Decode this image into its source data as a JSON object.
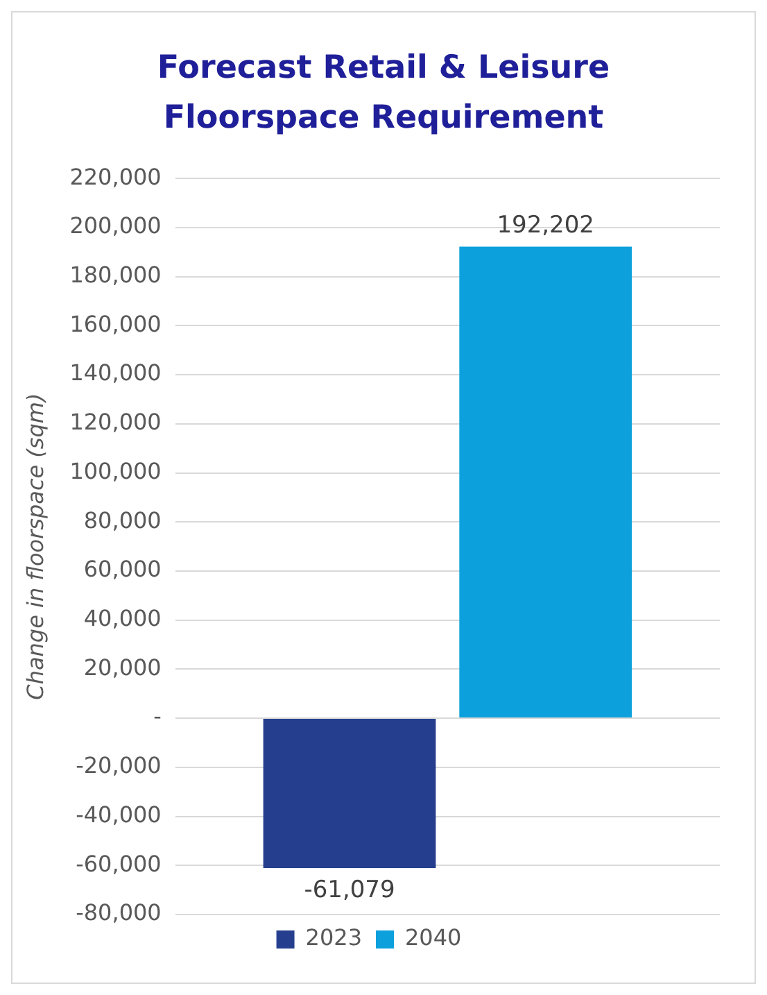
{
  "chart_data": {
    "type": "bar",
    "title": "Forecast Retail & Leisure Floorspace Requirement",
    "ylabel": "Change in floorspace (sqm)",
    "categories": [
      null
    ],
    "series": [
      {
        "name": "2023",
        "color": "#253f8e",
        "values": [
          -61079
        ],
        "value_labels": [
          "-61,079"
        ]
      },
      {
        "name": "2040",
        "color": "#0ca0dc",
        "values": [
          192202
        ],
        "value_labels": [
          "192,202"
        ]
      }
    ],
    "ylim": [
      -80000,
      220000
    ],
    "yticks": [
      {
        "value": -80000,
        "label": "-80,000"
      },
      {
        "value": -60000,
        "label": "-60,000"
      },
      {
        "value": -40000,
        "label": "-40,000"
      },
      {
        "value": -20000,
        "label": "-20,000"
      },
      {
        "value": 0,
        "label": "-"
      },
      {
        "value": 20000,
        "label": "20,000"
      },
      {
        "value": 40000,
        "label": "40,000"
      },
      {
        "value": 60000,
        "label": "60,000"
      },
      {
        "value": 80000,
        "label": "80,000"
      },
      {
        "value": 100000,
        "label": "100,000"
      },
      {
        "value": 120000,
        "label": "120,000"
      },
      {
        "value": 140000,
        "label": "140,000"
      },
      {
        "value": 160000,
        "label": "160,000"
      },
      {
        "value": 180000,
        "label": "180,000"
      },
      {
        "value": 200000,
        "label": "200,000"
      },
      {
        "value": 220000,
        "label": "220,000"
      }
    ],
    "grid": "y",
    "legend": "bottom"
  }
}
